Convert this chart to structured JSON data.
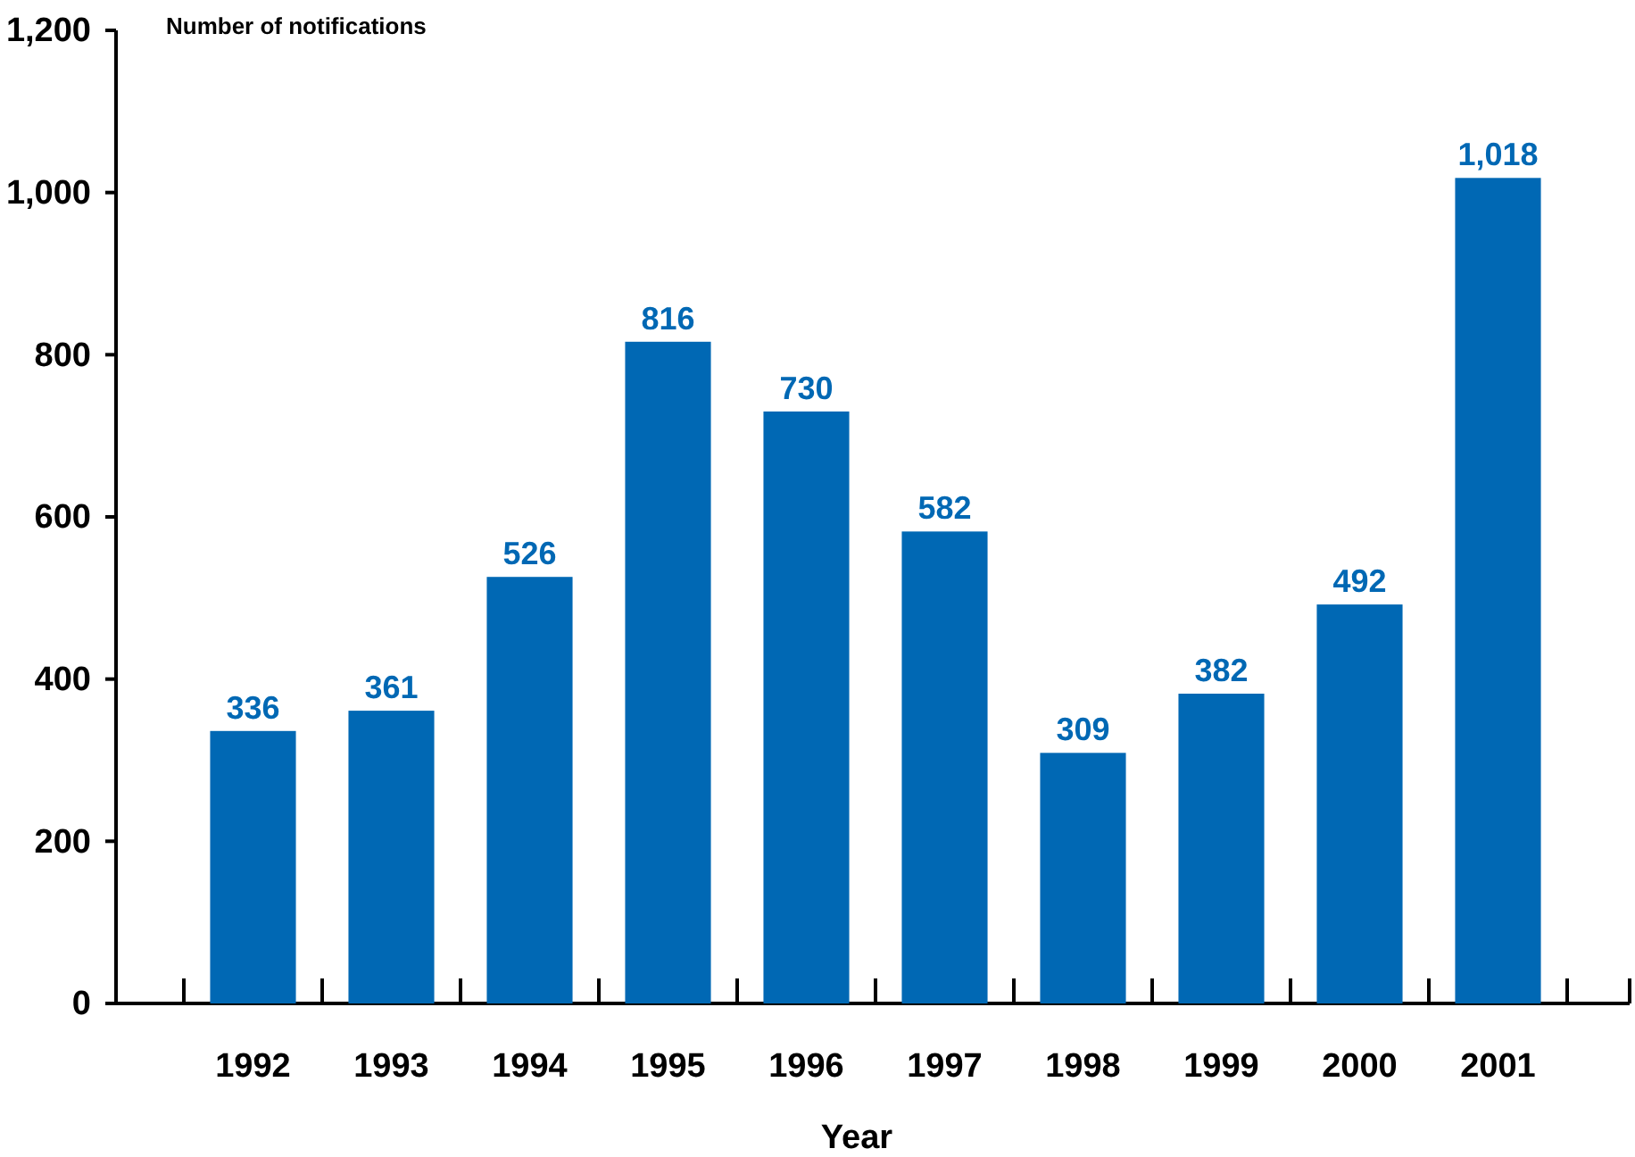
{
  "chart_data": {
    "type": "bar",
    "ylabel": "Number of notifications",
    "xlabel": "Year",
    "categories": [
      "1992",
      "1993",
      "1994",
      "1995",
      "1996",
      "1997",
      "1998",
      "1999",
      "2000",
      "2001"
    ],
    "values": [
      336,
      361,
      526,
      816,
      730,
      582,
      309,
      382,
      492,
      1018
    ],
    "value_labels": [
      "336",
      "361",
      "526",
      "816",
      "730",
      "582",
      "309",
      "382",
      "492",
      "1,018"
    ],
    "color": "#0068b4",
    "grid": false,
    "ylim": [
      0,
      1200
    ],
    "yticks": [
      0,
      200,
      400,
      600,
      800,
      {
        "value": 1000,
        "label": "1,000"
      },
      {
        "value": 1200,
        "label": "1,200"
      }
    ]
  }
}
